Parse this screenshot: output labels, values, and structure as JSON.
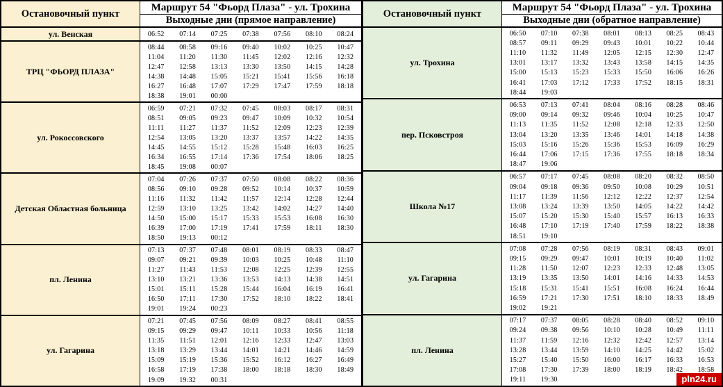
{
  "colors": {
    "left_stop_bg": "#fbf0d1",
    "right_stop_bg": "#e4efdb",
    "border": "#000000",
    "times_bg": "#ffffff",
    "watermark_bg": "#cc0000",
    "watermark_fg": "#ffffff"
  },
  "watermark": {
    "label": "pln24.ru"
  },
  "tables": [
    {
      "direction": "direct",
      "stop_header": "Остановочный пункт",
      "route_title": "Маршрут 54 \"Фьорд Плаза\" - ул. Трохина",
      "subtitle": "Выходные дни (прямое направление)",
      "stops": [
        {
          "name": "ул. Венская",
          "rows": [
            [
              "06:52",
              "07:14",
              "07:25",
              "07:38",
              "07:56",
              "08:10",
              "08:24"
            ]
          ]
        },
        {
          "name": "ТРЦ \"ФЬОРД ПЛАЗА\"",
          "rows": [
            [
              "08:44",
              "08:58",
              "09:16",
              "09:40",
              "10:02",
              "10:25",
              "10:47"
            ],
            [
              "11:04",
              "11:20",
              "11:30",
              "11:45",
              "12:02",
              "12:16",
              "12:32"
            ],
            [
              "12:47",
              "12:58",
              "13:13",
              "13:30",
              "13:50",
              "14:15",
              "14:28"
            ],
            [
              "14:38",
              "14:48",
              "15:05",
              "15:21",
              "15:41",
              "15:56",
              "16:18"
            ],
            [
              "16:27",
              "16:48",
              "17:07",
              "17:29",
              "17:47",
              "17:59",
              "18:18"
            ],
            [
              "18:38",
              "19:01",
              "00:00"
            ]
          ]
        },
        {
          "name": "ул. Рокоссовского",
          "rows": [
            [
              "06:59",
              "07:21",
              "07:32",
              "07:45",
              "08:03",
              "08:17",
              "08:31"
            ],
            [
              "08:51",
              "09:05",
              "09:23",
              "09:47",
              "10:09",
              "10:32",
              "10:54"
            ],
            [
              "11:11",
              "11:27",
              "11:37",
              "11:52",
              "12:09",
              "12:23",
              "12:39"
            ],
            [
              "12:54",
              "13:05",
              "13:20",
              "13:37",
              "13:57",
              "14:22",
              "14:35"
            ],
            [
              "14:45",
              "14:55",
              "15:12",
              "15:28",
              "15:48",
              "16:03",
              "16:25"
            ],
            [
              "16:34",
              "16:55",
              "17:14",
              "17:36",
              "17:54",
              "18:06",
              "18:25"
            ],
            [
              "18:45",
              "19:08",
              "00:07"
            ]
          ]
        },
        {
          "name": "Детская Областная больница",
          "rows": [
            [
              "07:04",
              "07:26",
              "07:37",
              "07:50",
              "08:08",
              "08:22",
              "08:36"
            ],
            [
              "08:56",
              "09:10",
              "09:28",
              "09:52",
              "10:14",
              "10:37",
              "10:59"
            ],
            [
              "11:16",
              "11:32",
              "11:42",
              "11:57",
              "12:14",
              "12:28",
              "12:44"
            ],
            [
              "12:59",
              "13:10",
              "13:25",
              "13:42",
              "14:02",
              "14:27",
              "14:40"
            ],
            [
              "14:50",
              "15:00",
              "15:17",
              "15:33",
              "15:53",
              "16:08",
              "16:30"
            ],
            [
              "16:39",
              "17:00",
              "17:19",
              "17:41",
              "17:59",
              "18:11",
              "18:30"
            ],
            [
              "18:50",
              "19:13",
              "00:12"
            ]
          ]
        },
        {
          "name": "пл. Ленина",
          "rows": [
            [
              "07:13",
              "07:37",
              "07:48",
              "08:01",
              "08:19",
              "08:33",
              "08:47"
            ],
            [
              "09:07",
              "09:21",
              "09:39",
              "10:03",
              "10:25",
              "10:48",
              "11:10"
            ],
            [
              "11:27",
              "11:43",
              "11:53",
              "12:08",
              "12:25",
              "12:39",
              "12:55"
            ],
            [
              "13:10",
              "13:21",
              "13:36",
              "13:53",
              "14:13",
              "14:38",
              "14:51"
            ],
            [
              "15:01",
              "15:11",
              "15:28",
              "15:44",
              "16:04",
              "16:19",
              "16:41"
            ],
            [
              "16:50",
              "17:11",
              "17:30",
              "17:52",
              "18:10",
              "18:22",
              "18:41"
            ],
            [
              "19:01",
              "19:24",
              "00:23"
            ]
          ]
        },
        {
          "name": "ул. Гагарина",
          "rows": [
            [
              "07:21",
              "07:45",
              "07:56",
              "08:09",
              "08:27",
              "08:41",
              "08:55"
            ],
            [
              "09:15",
              "09:29",
              "09:47",
              "10:11",
              "10:33",
              "10:56",
              "11:18"
            ],
            [
              "11:35",
              "11:51",
              "12:01",
              "12:16",
              "12:33",
              "12:47",
              "13:03"
            ],
            [
              "13:18",
              "13:29",
              "13:44",
              "14:01",
              "14:21",
              "14:46",
              "14:59"
            ],
            [
              "15:09",
              "15:19",
              "15:36",
              "15:52",
              "16:12",
              "16:27",
              "16:49"
            ],
            [
              "16:58",
              "17:19",
              "17:38",
              "18:00",
              "18:18",
              "18:30",
              "18:49"
            ],
            [
              "19:09",
              "19:32",
              "00:31"
            ]
          ]
        }
      ]
    },
    {
      "direction": "reverse",
      "stop_header": "Остановочный пункт",
      "route_title": "Маршрут 54 \"Фьорд Плаза\" - ул. Трохина",
      "subtitle": "Выходные дни (обратное направление)",
      "stops": [
        {
          "name": "ул. Трохина",
          "rows": [
            [
              "06:50",
              "07:10",
              "07:38",
              "08:01",
              "08:13",
              "08:25",
              "08:43"
            ],
            [
              "08:57",
              "09:11",
              "09:29",
              "09:43",
              "10:01",
              "10:22",
              "10:44"
            ],
            [
              "11:10",
              "11:32",
              "11:49",
              "12:05",
              "12:15",
              "12:30",
              "12:47"
            ],
            [
              "13:01",
              "13:17",
              "13:32",
              "13:43",
              "13:58",
              "14:15",
              "14:35"
            ],
            [
              "15:00",
              "15:13",
              "15:23",
              "15:33",
              "15:50",
              "16:06",
              "16:26"
            ],
            [
              "16:41",
              "17:03",
              "17:12",
              "17:33",
              "17:52",
              "18:15",
              "18:31"
            ],
            [
              "18:44",
              "19:03"
            ]
          ]
        },
        {
          "name": "пер. Псковстроя",
          "rows": [
            [
              "06:53",
              "07:13",
              "07:41",
              "08:04",
              "08:16",
              "08:28",
              "08:46"
            ],
            [
              "09:00",
              "09:14",
              "09:32",
              "09:46",
              "10:04",
              "10:25",
              "10:47"
            ],
            [
              "11:13",
              "11:35",
              "11:52",
              "12:08",
              "12:18",
              "12:33",
              "12:50"
            ],
            [
              "13:04",
              "13:20",
              "13:35",
              "13:46",
              "14:01",
              "14:18",
              "14:38"
            ],
            [
              "15:03",
              "15:16",
              "15:26",
              "15:36",
              "15:53",
              "16:09",
              "16:29"
            ],
            [
              "16:44",
              "17:06",
              "17:15",
              "17:36",
              "17:55",
              "18:18",
              "18:34"
            ],
            [
              "18:47",
              "19:06"
            ]
          ]
        },
        {
          "name": "Школа №17",
          "rows": [
            [
              "06:57",
              "07:17",
              "07:45",
              "08:08",
              "08:20",
              "08:32",
              "08:50"
            ],
            [
              "09:04",
              "09:18",
              "09:36",
              "09:50",
              "10:08",
              "10:29",
              "10:51"
            ],
            [
              "11:17",
              "11:39",
              "11:56",
              "12:12",
              "12:22",
              "12:37",
              "12:54"
            ],
            [
              "13:08",
              "13:24",
              "13:39",
              "13:50",
              "14:05",
              "14:22",
              "14:42"
            ],
            [
              "15:07",
              "15:20",
              "15:30",
              "15:40",
              "15:57",
              "16:13",
              "16:33"
            ],
            [
              "16:48",
              "17:10",
              "17:19",
              "17:40",
              "17:59",
              "18:22",
              "18:38"
            ],
            [
              "18:51",
              "19:10"
            ]
          ]
        },
        {
          "name": "ул. Гагарина",
          "rows": [
            [
              "07:08",
              "07:28",
              "07:56",
              "08:19",
              "08:31",
              "08:43",
              "09:01"
            ],
            [
              "09:15",
              "09:29",
              "09:47",
              "10:01",
              "10:19",
              "10:40",
              "11:02"
            ],
            [
              "11:28",
              "11:50",
              "12:07",
              "12:23",
              "12:33",
              "12:48",
              "13:05"
            ],
            [
              "13:19",
              "13:35",
              "13:50",
              "14:01",
              "14:16",
              "14:33",
              "14:53"
            ],
            [
              "15:18",
              "15:31",
              "15:41",
              "15:51",
              "16:08",
              "16:24",
              "16:44"
            ],
            [
              "16:59",
              "17:21",
              "17:30",
              "17:51",
              "18:10",
              "18:33",
              "18:49"
            ],
            [
              "19:02",
              "19:21"
            ]
          ]
        },
        {
          "name": "пл. Ленина",
          "rows": [
            [
              "07:17",
              "07:37",
              "08:05",
              "08:28",
              "08:40",
              "08:52",
              "09:10"
            ],
            [
              "09:24",
              "09:38",
              "09:56",
              "10:10",
              "10:28",
              "10:49",
              "11:11"
            ],
            [
              "11:37",
              "11:59",
              "12:16",
              "12:32",
              "12:42",
              "12:57",
              "13:14"
            ],
            [
              "13:28",
              "13:44",
              "13:59",
              "14:10",
              "14:25",
              "14:42",
              "15:02"
            ],
            [
              "15:27",
              "15:40",
              "15:50",
              "16:00",
              "16:17",
              "16:33",
              "16:53"
            ],
            [
              "17:08",
              "17:30",
              "17:39",
              "18:00",
              "18:19",
              "18:42",
              "18:58"
            ],
            [
              "19:11",
              "19:30"
            ]
          ]
        }
      ]
    }
  ]
}
